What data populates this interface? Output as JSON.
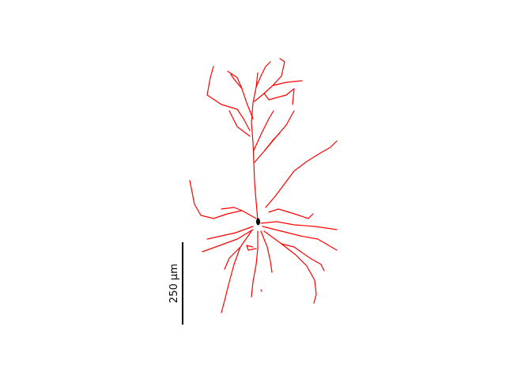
{
  "scale_bar": {
    "label": "250 µm"
  }
}
